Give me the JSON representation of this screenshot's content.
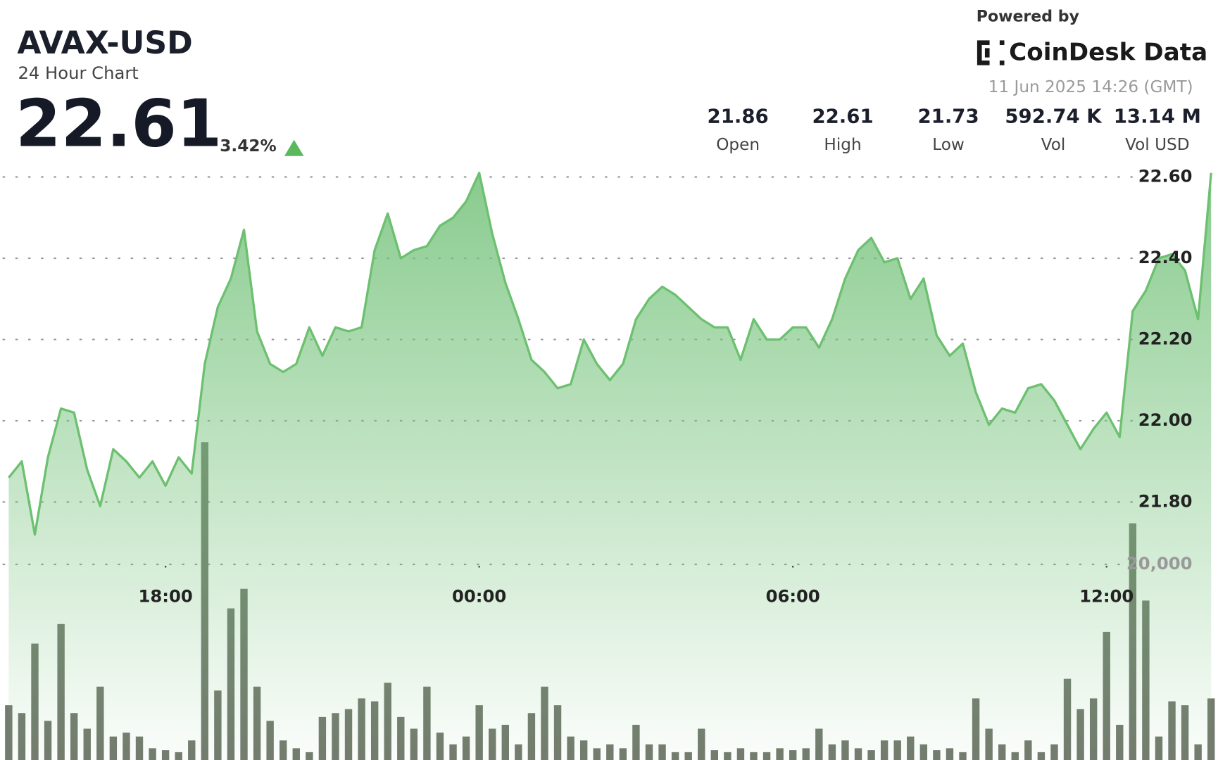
{
  "header": {
    "symbol": "AVAX-USD",
    "subtitle": "24 Hour Chart",
    "price": "22.61",
    "change": "3.42%",
    "powered_by": "Powered by",
    "brand": "CoinDesk Data",
    "timestamp": "11 Jun 2025 14:26 (GMT)"
  },
  "stats": [
    {
      "value": "21.86",
      "label": "Open"
    },
    {
      "value": "22.61",
      "label": "High"
    },
    {
      "value": "21.73",
      "label": "Low"
    },
    {
      "value": "592.74 K",
      "label": "Vol"
    },
    {
      "value": "13.14 M",
      "label": "Vol USD"
    }
  ],
  "chart_data": {
    "type": "line",
    "x": [
      15,
      15.25,
      15.5,
      15.75,
      16,
      16.25,
      16.5,
      16.75,
      17,
      17.25,
      17.5,
      17.75,
      18,
      18.25,
      18.5,
      18.75,
      19,
      19.25,
      19.5,
      19.75,
      20,
      20.25,
      20.5,
      20.75,
      21,
      21.25,
      21.5,
      21.75,
      22,
      22.25,
      22.5,
      22.75,
      23,
      23.25,
      23.5,
      23.75,
      24,
      24.25,
      24.5,
      24.75,
      25,
      25.25,
      25.5,
      25.75,
      26,
      26.25,
      26.5,
      26.75,
      27,
      27.25,
      27.5,
      27.75,
      28,
      28.25,
      28.5,
      28.75,
      29,
      29.25,
      29.5,
      29.75,
      30,
      30.25,
      30.5,
      30.75,
      31,
      31.25,
      31.5,
      31.75,
      32,
      32.25,
      32.5,
      32.75,
      33,
      33.25,
      33.5,
      33.75,
      34,
      34.25,
      34.5,
      34.75,
      35,
      35.25,
      35.5,
      35.75,
      36,
      36.25,
      36.5,
      36.75,
      37,
      37.25,
      37.5,
      37.75,
      38
    ],
    "series": [
      {
        "name": "Price",
        "color": "#6cc070",
        "values": [
          21.86,
          21.9,
          21.72,
          21.91,
          22.03,
          22.02,
          21.88,
          21.79,
          21.93,
          21.9,
          21.86,
          21.9,
          21.84,
          21.91,
          21.87,
          22.14,
          22.28,
          22.35,
          22.47,
          22.22,
          22.14,
          22.12,
          22.14,
          22.23,
          22.16,
          22.23,
          22.22,
          22.23,
          22.42,
          22.51,
          22.4,
          22.42,
          22.43,
          22.48,
          22.5,
          22.54,
          22.61,
          22.46,
          22.34,
          22.25,
          22.15,
          22.12,
          22.08,
          22.09,
          22.2,
          22.14,
          22.1,
          22.14,
          22.25,
          22.3,
          22.33,
          22.31,
          22.28,
          22.25,
          22.23,
          22.23,
          22.15,
          22.25,
          22.2,
          22.2,
          22.23,
          22.23,
          22.18,
          22.25,
          22.35,
          22.42,
          22.45,
          22.39,
          22.4,
          22.3,
          22.35,
          22.21,
          22.16,
          22.19,
          22.07,
          21.99,
          22.03,
          22.02,
          22.08,
          22.09,
          22.05,
          21.99,
          21.93,
          21.98,
          22.02,
          21.96,
          22.27,
          22.32,
          22.4,
          22.41,
          22.37,
          22.25,
          22.61
        ]
      },
      {
        "name": "Volume",
        "type": "bar",
        "axis": "y2",
        "color": "#6b7366",
        "values": [
          5600,
          4800,
          11900,
          4000,
          13900,
          4800,
          3200,
          7500,
          2400,
          2800,
          2400,
          1200,
          1000,
          800,
          2000,
          32500,
          7100,
          15500,
          17500,
          7500,
          4000,
          2000,
          1200,
          800,
          4400,
          4800,
          5200,
          6300,
          6000,
          7900,
          4400,
          3200,
          7500,
          2800,
          1600,
          2400,
          5600,
          3200,
          3600,
          1600,
          4800,
          7500,
          5600,
          2400,
          2000,
          1200,
          1600,
          1200,
          3600,
          1600,
          1600,
          800,
          800,
          3200,
          1000,
          800,
          1200,
          800,
          800,
          1200,
          1000,
          1200,
          3200,
          1600,
          2000,
          1200,
          1000,
          2000,
          2000,
          2400,
          1600,
          1000,
          1200,
          800,
          6300,
          3200,
          1600,
          800,
          2000,
          800,
          1600,
          8300,
          5200,
          6300,
          13100,
          3600,
          24200,
          16300,
          2400,
          6000,
          5600,
          1600,
          6300
        ]
      }
    ],
    "xlim": [
      14.835,
      38.13
    ],
    "xticks": [
      {
        "value": 18,
        "label": "18:00"
      },
      {
        "value": 24,
        "label": "00:00"
      },
      {
        "value": 30,
        "label": "06:00"
      },
      {
        "value": 36,
        "label": "12:00"
      }
    ],
    "ylim": [
      21.165,
      22.6
    ],
    "yticks": [
      {
        "value": 21.8,
        "label": "21.80"
      },
      {
        "value": 22,
        "label": "22.00"
      },
      {
        "value": 22.2,
        "label": "22.20"
      },
      {
        "value": 22.4,
        "label": "22.40"
      },
      {
        "value": 22.6,
        "label": "22.60"
      }
    ],
    "y2lim": [
      0,
      59600
    ],
    "y2ticks": [
      {
        "value": 20000,
        "label": "20,000"
      }
    ],
    "grid": true
  }
}
